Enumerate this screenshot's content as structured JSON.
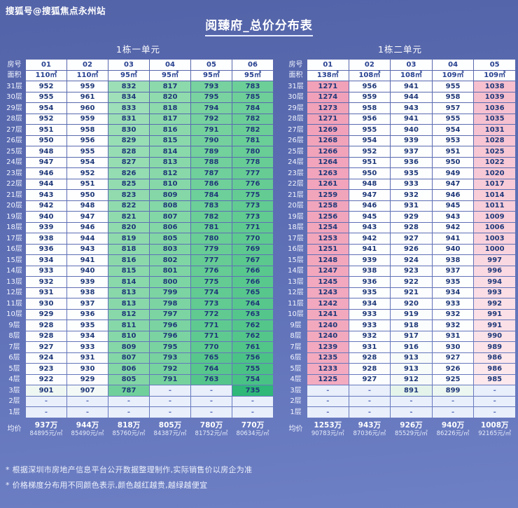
{
  "watermark": "搜狐号@搜狐焦点永州站",
  "title": "阅臻府_总价分布表",
  "labels": {
    "room": "房号",
    "area": "面积",
    "avg": "均价"
  },
  "footnotes": [
    "* 根据深圳市房地产信息平台公开数据整理制作,实际销售价以房企为准",
    "* 价格梯度分布用不同颜色表示,颜色越红越贵,越绿越便宜"
  ],
  "colors": {
    "background_top": "#5363a8",
    "background_bottom": "#6e80c5",
    "header_cell": "#fdfeff",
    "empty_cell": "#e9effb",
    "cell_text": "#1f3878",
    "label_text": "#ffffff",
    "scale": [
      {
        "v": 735,
        "c": "#2fb878"
      },
      {
        "v": 768,
        "c": "#5cc98e"
      },
      {
        "v": 795,
        "c": "#79d3a0"
      },
      {
        "v": 825,
        "c": "#93dcb0"
      },
      {
        "v": 862,
        "c": "#c3ebd4"
      },
      {
        "v": 900,
        "c": "#eef7f2"
      },
      {
        "v": 920,
        "c": "#fcfdfe"
      },
      {
        "v": 968,
        "c": "#ffffff"
      },
      {
        "v": 1000,
        "c": "#f9d4de"
      },
      {
        "v": 1045,
        "c": "#f5bccc"
      },
      {
        "v": 1230,
        "c": "#f3abc0"
      },
      {
        "v": 1280,
        "c": "#f0a0b8"
      }
    ]
  },
  "chart_data": [
    {
      "type": "heatmap",
      "title": "1栋一单元",
      "columns": [
        "01",
        "02",
        "03",
        "04",
        "05",
        "06"
      ],
      "areas": [
        "110㎡",
        "110㎡",
        "95㎡",
        "95㎡",
        "95㎡",
        "95㎡"
      ],
      "unit_of_values": "万",
      "rows": [
        {
          "floor": "31层",
          "values": [
            "952",
            "959",
            "832",
            "817",
            "793",
            "783"
          ]
        },
        {
          "floor": "30层",
          "values": [
            "955",
            "961",
            "834",
            "820",
            "795",
            "785"
          ]
        },
        {
          "floor": "29层",
          "values": [
            "954",
            "960",
            "833",
            "818",
            "794",
            "784"
          ]
        },
        {
          "floor": "28层",
          "values": [
            "952",
            "959",
            "831",
            "817",
            "792",
            "782"
          ]
        },
        {
          "floor": "27层",
          "values": [
            "951",
            "958",
            "830",
            "816",
            "791",
            "782"
          ]
        },
        {
          "floor": "26层",
          "values": [
            "950",
            "956",
            "829",
            "815",
            "790",
            "781"
          ]
        },
        {
          "floor": "25层",
          "values": [
            "948",
            "955",
            "828",
            "814",
            "789",
            "780"
          ]
        },
        {
          "floor": "24层",
          "values": [
            "947",
            "954",
            "827",
            "813",
            "788",
            "778"
          ]
        },
        {
          "floor": "23层",
          "values": [
            "946",
            "952",
            "826",
            "812",
            "787",
            "777"
          ]
        },
        {
          "floor": "22层",
          "values": [
            "944",
            "951",
            "825",
            "810",
            "786",
            "776"
          ]
        },
        {
          "floor": "21层",
          "values": [
            "943",
            "950",
            "823",
            "809",
            "784",
            "775"
          ]
        },
        {
          "floor": "20层",
          "values": [
            "942",
            "948",
            "822",
            "808",
            "783",
            "773"
          ]
        },
        {
          "floor": "19层",
          "values": [
            "940",
            "947",
            "821",
            "807",
            "782",
            "773"
          ]
        },
        {
          "floor": "18层",
          "values": [
            "939",
            "946",
            "820",
            "806",
            "781",
            "771"
          ]
        },
        {
          "floor": "17层",
          "values": [
            "938",
            "944",
            "819",
            "805",
            "780",
            "770"
          ]
        },
        {
          "floor": "16层",
          "values": [
            "936",
            "943",
            "818",
            "803",
            "779",
            "769"
          ]
        },
        {
          "floor": "15层",
          "values": [
            "934",
            "941",
            "816",
            "802",
            "777",
            "767"
          ]
        },
        {
          "floor": "14层",
          "values": [
            "933",
            "940",
            "815",
            "801",
            "776",
            "766"
          ]
        },
        {
          "floor": "13层",
          "values": [
            "932",
            "939",
            "814",
            "800",
            "775",
            "766"
          ]
        },
        {
          "floor": "12层",
          "values": [
            "931",
            "938",
            "813",
            "799",
            "774",
            "765"
          ]
        },
        {
          "floor": "11层",
          "values": [
            "930",
            "937",
            "813",
            "798",
            "773",
            "764"
          ]
        },
        {
          "floor": "10层",
          "values": [
            "929",
            "936",
            "812",
            "797",
            "772",
            "763"
          ]
        },
        {
          "floor": "9层",
          "values": [
            "928",
            "935",
            "811",
            "796",
            "771",
            "762"
          ]
        },
        {
          "floor": "8层",
          "values": [
            "928",
            "934",
            "810",
            "796",
            "771",
            "762"
          ]
        },
        {
          "floor": "7层",
          "values": [
            "927",
            "933",
            "809",
            "795",
            "770",
            "761"
          ]
        },
        {
          "floor": "6层",
          "values": [
            "924",
            "931",
            "807",
            "793",
            "765",
            "756"
          ]
        },
        {
          "floor": "5层",
          "values": [
            "923",
            "930",
            "806",
            "792",
            "764",
            "755"
          ]
        },
        {
          "floor": "4层",
          "values": [
            "922",
            "929",
            "805",
            "791",
            "763",
            "754"
          ]
        },
        {
          "floor": "3层",
          "values": [
            "901",
            "907",
            "787",
            "-",
            "-",
            "735"
          ]
        },
        {
          "floor": "2层",
          "values": [
            "-",
            "-",
            "-",
            "-",
            "-",
            "-"
          ]
        },
        {
          "floor": "1层",
          "values": [
            "-",
            "-",
            "-",
            "-",
            "-",
            "-"
          ]
        }
      ],
      "averages": [
        {
          "price": "937万",
          "unit": "84895元/㎡"
        },
        {
          "price": "944万",
          "unit": "85490元/㎡"
        },
        {
          "price": "818万",
          "unit": "85760元/㎡"
        },
        {
          "price": "805万",
          "unit": "84387元/㎡"
        },
        {
          "price": "780万",
          "unit": "81752元/㎡"
        },
        {
          "price": "770万",
          "unit": "80634元/㎡"
        }
      ]
    },
    {
      "type": "heatmap",
      "title": "1栋二单元",
      "columns": [
        "01",
        "02",
        "03",
        "04",
        "05"
      ],
      "areas": [
        "138㎡",
        "108㎡",
        "108㎡",
        "109㎡",
        "109㎡"
      ],
      "unit_of_values": "万",
      "rows": [
        {
          "floor": "31层",
          "values": [
            "1271",
            "956",
            "941",
            "955",
            "1038"
          ]
        },
        {
          "floor": "30层",
          "values": [
            "1274",
            "959",
            "944",
            "958",
            "1039"
          ]
        },
        {
          "floor": "29层",
          "values": [
            "1273",
            "958",
            "943",
            "957",
            "1036"
          ]
        },
        {
          "floor": "28层",
          "values": [
            "1271",
            "956",
            "941",
            "955",
            "1035"
          ]
        },
        {
          "floor": "27层",
          "values": [
            "1269",
            "955",
            "940",
            "954",
            "1031"
          ]
        },
        {
          "floor": "26层",
          "values": [
            "1268",
            "954",
            "939",
            "953",
            "1028"
          ]
        },
        {
          "floor": "25层",
          "values": [
            "1266",
            "952",
            "937",
            "951",
            "1025"
          ]
        },
        {
          "floor": "24层",
          "values": [
            "1264",
            "951",
            "936",
            "950",
            "1022"
          ]
        },
        {
          "floor": "23层",
          "values": [
            "1263",
            "950",
            "935",
            "949",
            "1020"
          ]
        },
        {
          "floor": "22层",
          "values": [
            "1261",
            "948",
            "933",
            "947",
            "1017"
          ]
        },
        {
          "floor": "21层",
          "values": [
            "1259",
            "947",
            "932",
            "946",
            "1014"
          ]
        },
        {
          "floor": "20层",
          "values": [
            "1258",
            "946",
            "931",
            "945",
            "1011"
          ]
        },
        {
          "floor": "19层",
          "values": [
            "1256",
            "945",
            "929",
            "943",
            "1009"
          ]
        },
        {
          "floor": "18层",
          "values": [
            "1254",
            "943",
            "928",
            "942",
            "1006"
          ]
        },
        {
          "floor": "17层",
          "values": [
            "1253",
            "942",
            "927",
            "941",
            "1003"
          ]
        },
        {
          "floor": "16层",
          "values": [
            "1251",
            "941",
            "926",
            "940",
            "1000"
          ]
        },
        {
          "floor": "15层",
          "values": [
            "1248",
            "939",
            "924",
            "938",
            "997"
          ]
        },
        {
          "floor": "14层",
          "values": [
            "1247",
            "938",
            "923",
            "937",
            "996"
          ]
        },
        {
          "floor": "13层",
          "values": [
            "1245",
            "936",
            "922",
            "935",
            "994"
          ]
        },
        {
          "floor": "12层",
          "values": [
            "1243",
            "935",
            "921",
            "934",
            "993"
          ]
        },
        {
          "floor": "11层",
          "values": [
            "1242",
            "934",
            "920",
            "933",
            "992"
          ]
        },
        {
          "floor": "10层",
          "values": [
            "1241",
            "933",
            "919",
            "932",
            "991"
          ]
        },
        {
          "floor": "9层",
          "values": [
            "1240",
            "933",
            "918",
            "932",
            "991"
          ]
        },
        {
          "floor": "8层",
          "values": [
            "1240",
            "932",
            "917",
            "931",
            "990"
          ]
        },
        {
          "floor": "7层",
          "values": [
            "1239",
            "931",
            "916",
            "930",
            "989"
          ]
        },
        {
          "floor": "6层",
          "values": [
            "1235",
            "928",
            "913",
            "927",
            "986"
          ]
        },
        {
          "floor": "5层",
          "values": [
            "1233",
            "928",
            "913",
            "926",
            "986"
          ]
        },
        {
          "floor": "4层",
          "values": [
            "1225",
            "927",
            "912",
            "925",
            "985"
          ]
        },
        {
          "floor": "3层",
          "values": [
            "-",
            "-",
            "891",
            "899",
            "-"
          ]
        },
        {
          "floor": "2层",
          "values": [
            "-",
            "-",
            "-",
            "-",
            "-"
          ]
        },
        {
          "floor": "1层",
          "values": [
            "-",
            "-",
            "-",
            "-",
            "-"
          ]
        }
      ],
      "averages": [
        {
          "price": "1253万",
          "unit": "90783元/㎡"
        },
        {
          "price": "943万",
          "unit": "87036元/㎡"
        },
        {
          "price": "926万",
          "unit": "85529元/㎡"
        },
        {
          "price": "940万",
          "unit": "86226元/㎡"
        },
        {
          "price": "1008万",
          "unit": "92165元/㎡"
        }
      ]
    }
  ]
}
